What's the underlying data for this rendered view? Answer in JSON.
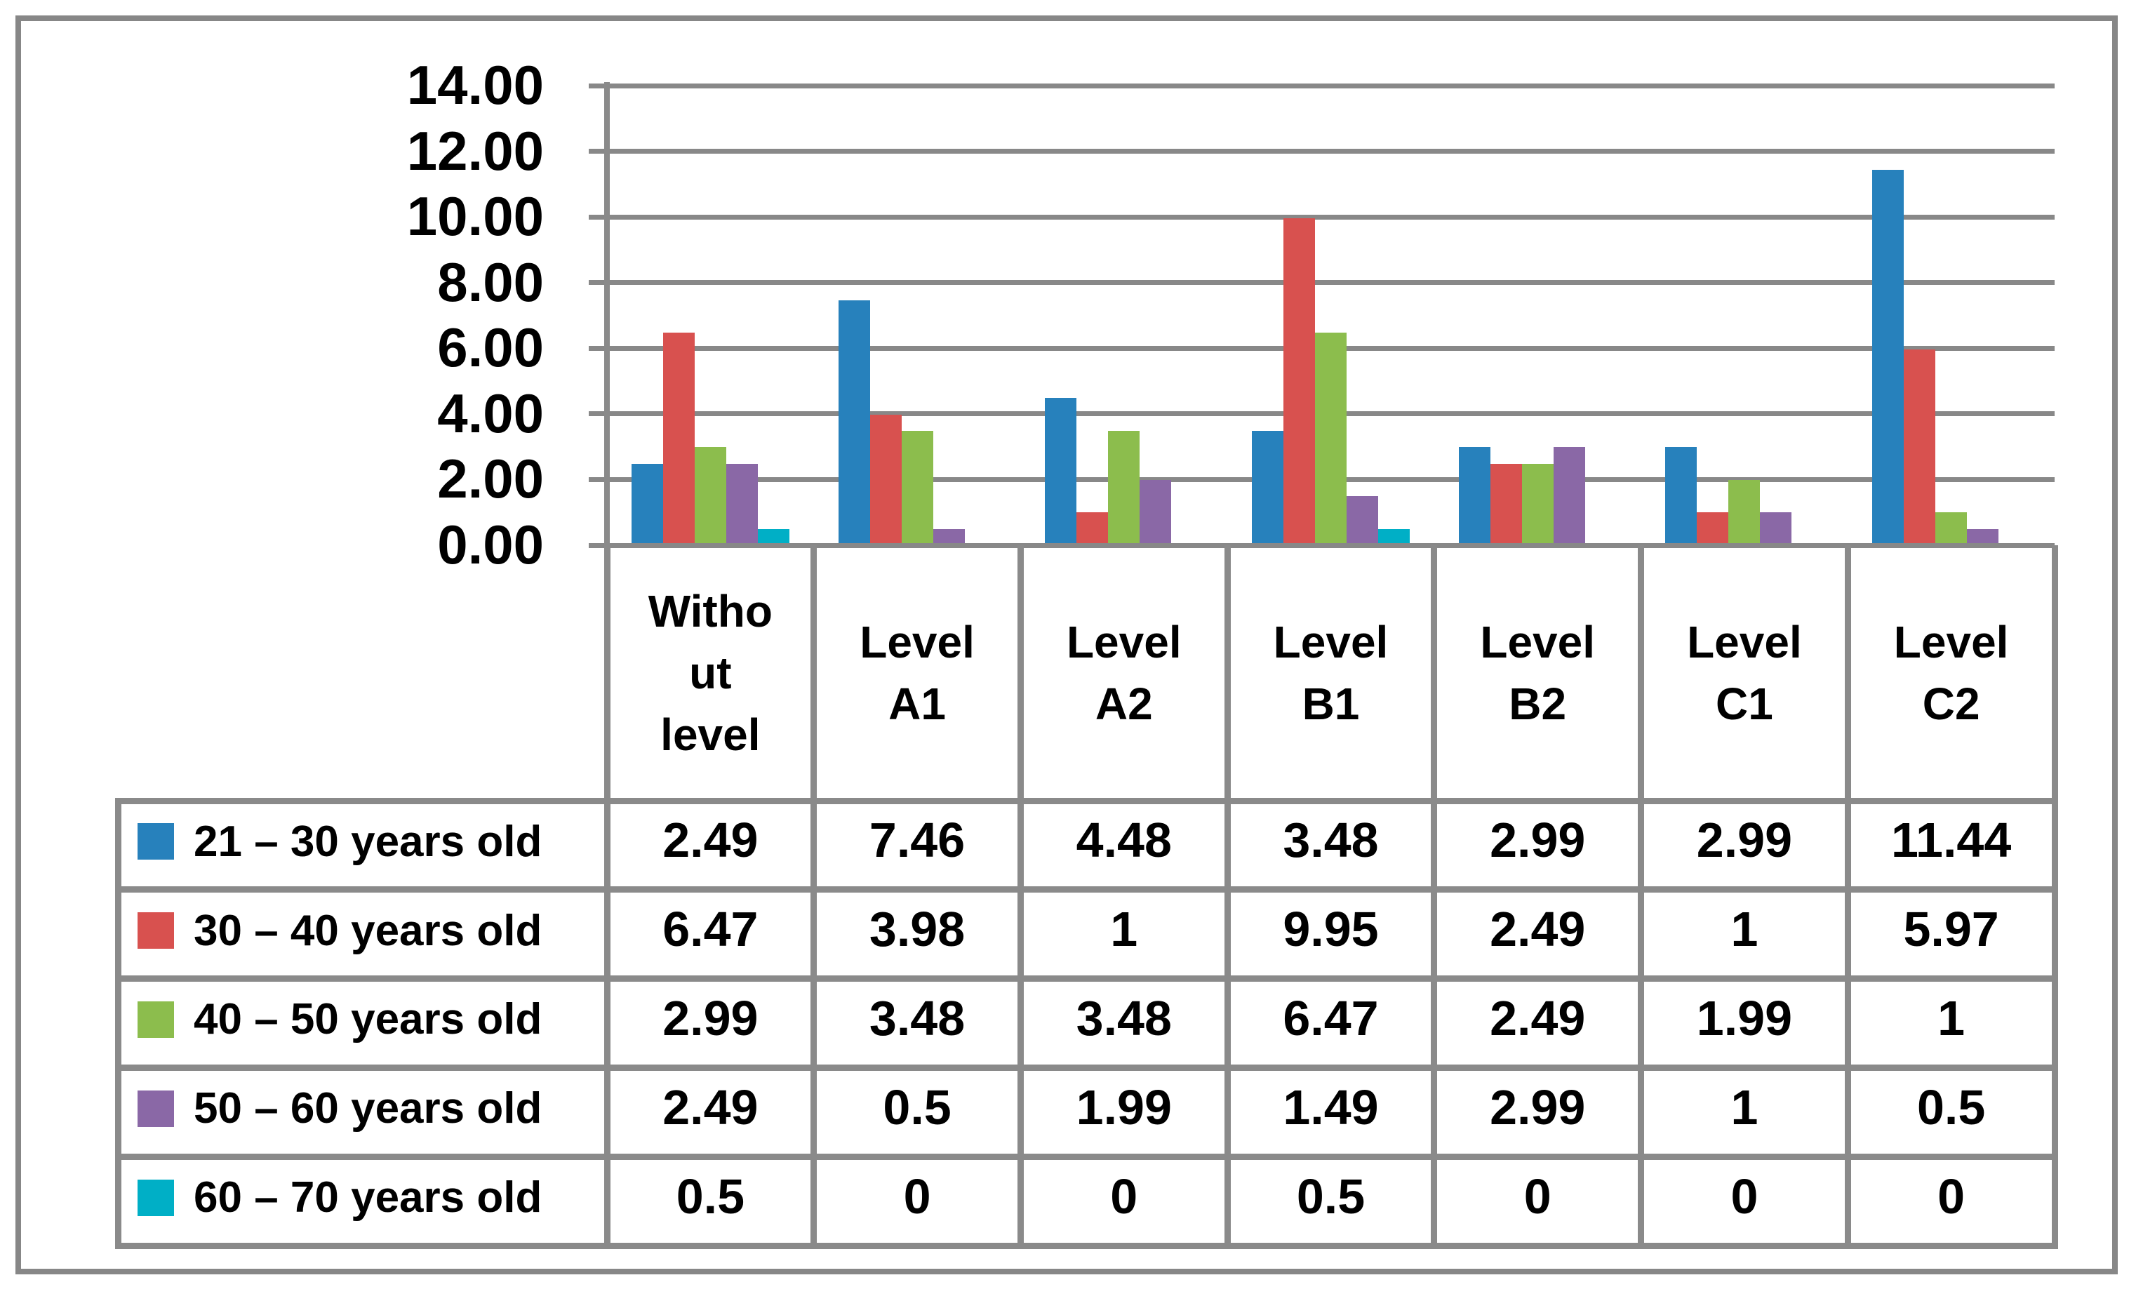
{
  "figure": {
    "background": "#FFFFFF",
    "border_color": "#878787",
    "grid_color": "#888888",
    "table_border_color": "#8A8A8A",
    "text_color": "#000000"
  },
  "chart_data": {
    "type": "bar",
    "title": "",
    "xlabel": "",
    "ylabel": "",
    "ylim": [
      0,
      14
    ],
    "grid": true,
    "legend_position": "table-row-keys-left",
    "y_ticks": [
      "0.00",
      "2.00",
      "4.00",
      "6.00",
      "8.00",
      "10.00",
      "12.00",
      "14.00"
    ],
    "categories": [
      "Without level",
      "Level A1",
      "Level A2",
      "Level B1",
      "Level B2",
      "Level C1",
      "Level C2"
    ],
    "categories_display": [
      [
        "Witho",
        "ut",
        "level"
      ],
      [
        "Level",
        "A1"
      ],
      [
        "Level",
        "A2"
      ],
      [
        "Level",
        "B1"
      ],
      [
        "Level",
        "B2"
      ],
      [
        "Level",
        "C1"
      ],
      [
        "Level",
        "C2"
      ]
    ],
    "series": [
      {
        "name": "21 – 30 years old",
        "color": "#2781BC",
        "values": [
          2.49,
          7.46,
          4.48,
          3.48,
          2.99,
          2.99,
          11.44
        ]
      },
      {
        "name": "30 – 40 years old",
        "color": "#D8514F",
        "values": [
          6.47,
          3.98,
          1,
          9.95,
          2.49,
          1,
          5.97
        ]
      },
      {
        "name": "40 – 50 years old",
        "color": "#8CBD4D",
        "values": [
          2.99,
          3.48,
          3.48,
          6.47,
          2.49,
          1.99,
          1
        ]
      },
      {
        "name": "50 – 60 years old",
        "color": "#8A68A6",
        "values": [
          2.49,
          0.5,
          1.99,
          1.49,
          2.99,
          1,
          0.5
        ]
      },
      {
        "name": "60 – 70 years old",
        "color": "#00AFC6",
        "values": [
          0.5,
          0,
          0,
          0.5,
          0,
          0,
          0
        ]
      }
    ]
  }
}
